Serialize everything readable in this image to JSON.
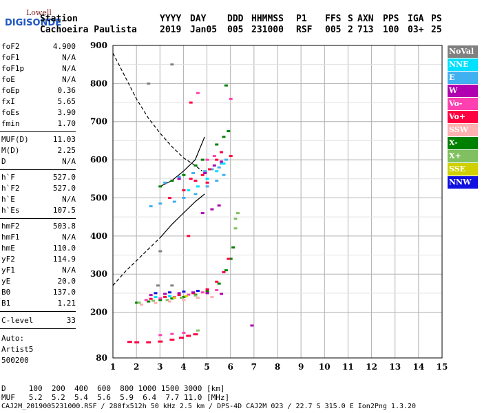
{
  "logo": {
    "line1": "Lowell",
    "line2": "DIGISONDE"
  },
  "header": {
    "labels": [
      "Station",
      "YYYY",
      "DAY",
      "DDD",
      "HHMMSS",
      "P1",
      "FFS",
      "S",
      "AXN",
      "PPS",
      "IGA",
      "PS"
    ],
    "values": [
      "Cachoeira Paulista",
      "2019",
      "Jan05",
      "005",
      "231000",
      "RSF",
      "005",
      "2",
      "713",
      "100",
      "03+",
      "25"
    ]
  },
  "params": [
    {
      "k": "foF2",
      "v": "4.900"
    },
    {
      "k": "foF1",
      "v": "N/A"
    },
    {
      "k": "foF1p",
      "v": "N/A"
    },
    {
      "k": "foE",
      "v": "N/A"
    },
    {
      "k": "foEp",
      "v": "0.36"
    },
    {
      "k": "fxI",
      "v": "5.65"
    },
    {
      "k": "foEs",
      "v": "3.90"
    },
    {
      "k": "fmin",
      "v": "1.70"
    },
    {
      "k": "MUF(D)",
      "v": "11.03"
    },
    {
      "k": "M(D)",
      "v": "2.25"
    },
    {
      "k": "D",
      "v": "N/A"
    },
    {
      "k": "h`F",
      "v": "527.0"
    },
    {
      "k": "h`F2",
      "v": "527.0"
    },
    {
      "k": "h`E",
      "v": "N/A"
    },
    {
      "k": "h`Es",
      "v": "107.5"
    },
    {
      "k": "hmF2",
      "v": "503.8"
    },
    {
      "k": "hmF1",
      "v": "N/A"
    },
    {
      "k": "hmE",
      "v": "110.0"
    },
    {
      "k": "yF2",
      "v": "114.9"
    },
    {
      "k": "yF1",
      "v": "N/A"
    },
    {
      "k": "yE",
      "v": "20.0"
    },
    {
      "k": "B0",
      "v": "137.0"
    },
    {
      "k": "B1",
      "v": "1.21"
    },
    {
      "k": "C-level",
      "v": "33"
    }
  ],
  "auto": {
    "line1": "Auto:",
    "line2": "Artist5",
    "line3": "500200"
  },
  "legend": [
    {
      "label": "NoVal",
      "color": "#808080"
    },
    {
      "label": "NNE",
      "color": "#00e0ff"
    },
    {
      "label": "E",
      "color": "#40b0f0"
    },
    {
      "label": "W",
      "color": "#b000b0"
    },
    {
      "label": "Vo-",
      "color": "#ff40b0"
    },
    {
      "label": "Vo+",
      "color": "#ff0040"
    },
    {
      "label": "SSW",
      "color": "#ffb0b0"
    },
    {
      "label": "X-",
      "color": "#008000"
    },
    {
      "label": "X+",
      "color": "#80c060"
    },
    {
      "label": "SSE",
      "color": "#d0d000"
    },
    {
      "label": "NNW",
      "color": "#1010e0"
    }
  ],
  "footer": {
    "d_row": "D     100  200  400  600  800 1000 1500 3000 [km]",
    "muf_row": "MUF   5.2  5.2  5.4  5.6  5.9  6.4  7.7 11.0 [MHz]",
    "file_row": "CAJ2M_2019005231000.RSF / 280fx512h 50 kHz 2.5 km / DPS-4D CAJ2M 023 / 22.7 S 315.0 E Ion2Png 1.3.20"
  },
  "chart_data": {
    "type": "scatter",
    "xlim": [
      1,
      15
    ],
    "ylim": [
      80,
      900
    ],
    "x_ticks": [
      1,
      2,
      3,
      4,
      5,
      6,
      7,
      8,
      9,
      10,
      11,
      12,
      13,
      14,
      15
    ],
    "y_ticks": [
      80,
      200,
      300,
      400,
      500,
      600,
      700,
      800,
      900
    ],
    "grid": true,
    "dashed_curve": [
      [
        1.0,
        880
      ],
      [
        1.5,
        820
      ],
      [
        2.0,
        760
      ],
      [
        2.5,
        710
      ],
      [
        3.0,
        670
      ],
      [
        3.5,
        635
      ],
      [
        4.0,
        605
      ],
      [
        4.5,
        585
      ],
      [
        4.8,
        570
      ]
    ],
    "dashed_curve_lower": [
      [
        1.0,
        270
      ],
      [
        1.5,
        305
      ],
      [
        2.0,
        335
      ],
      [
        2.5,
        365
      ],
      [
        3.0,
        395
      ]
    ],
    "solid_curve_lower": [
      [
        3.0,
        395
      ],
      [
        3.5,
        430
      ],
      [
        4.0,
        460
      ],
      [
        4.5,
        490
      ],
      [
        4.9,
        510
      ]
    ],
    "solid_curve_upper": [
      [
        3.0,
        530
      ],
      [
        3.5,
        545
      ],
      [
        4.0,
        570
      ],
      [
        4.5,
        600
      ],
      [
        4.7,
        630
      ],
      [
        4.9,
        660
      ]
    ],
    "series": [
      {
        "name": "E",
        "color": "#40b0f0",
        "points": [
          [
            3.2,
            540
          ],
          [
            3.8,
            555
          ],
          [
            4.4,
            565
          ],
          [
            4.9,
            570
          ],
          [
            5.2,
            575
          ],
          [
            5.5,
            580
          ],
          [
            5.6,
            590
          ],
          [
            5.8,
            600
          ],
          [
            2.6,
            478
          ],
          [
            3.0,
            485
          ],
          [
            3.6,
            490
          ],
          [
            4.0,
            500
          ],
          [
            4.5,
            510
          ],
          [
            5.0,
            530
          ],
          [
            5.4,
            545
          ],
          [
            5.7,
            560
          ]
        ]
      },
      {
        "name": "X-",
        "color": "#008000",
        "points": [
          [
            3.0,
            530
          ],
          [
            3.5,
            545
          ],
          [
            4.0,
            560
          ],
          [
            4.5,
            585
          ],
          [
            4.8,
            600
          ],
          [
            2.0,
            225
          ],
          [
            2.5,
            228
          ],
          [
            3.0,
            232
          ],
          [
            3.5,
            236
          ],
          [
            4.0,
            240
          ],
          [
            4.5,
            246
          ],
          [
            5.0,
            255
          ],
          [
            5.5,
            275
          ],
          [
            5.8,
            310
          ],
          [
            6.0,
            340
          ],
          [
            6.1,
            370
          ],
          [
            5.4,
            640
          ],
          [
            5.7,
            660
          ],
          [
            5.9,
            675
          ],
          [
            5.8,
            795
          ]
        ]
      },
      {
        "name": "Vo+",
        "color": "#ff0040",
        "points": [
          [
            4.5,
            545
          ],
          [
            4.8,
            560
          ],
          [
            5.1,
            575
          ],
          [
            5.4,
            600
          ],
          [
            5.6,
            620
          ],
          [
            5.0,
            540
          ],
          [
            4.3,
            550
          ],
          [
            4.0,
            520
          ],
          [
            3.4,
            500
          ],
          [
            4.2,
            400
          ],
          [
            2.6,
            235
          ],
          [
            3.2,
            240
          ],
          [
            3.8,
            245
          ],
          [
            4.4,
            250
          ],
          [
            5.0,
            260
          ],
          [
            5.4,
            280
          ],
          [
            5.7,
            305
          ],
          [
            5.9,
            340
          ],
          [
            4.3,
            750
          ],
          [
            6.0,
            610
          ]
        ]
      },
      {
        "name": "W",
        "color": "#b000b0",
        "points": [
          [
            2.6,
            245
          ],
          [
            3.2,
            248
          ],
          [
            3.8,
            250
          ],
          [
            4.4,
            252
          ],
          [
            5.0,
            250
          ],
          [
            5.6,
            248
          ],
          [
            4.8,
            460
          ],
          [
            5.2,
            470
          ],
          [
            5.5,
            480
          ],
          [
            4.9,
            565
          ],
          [
            5.3,
            585
          ],
          [
            5.6,
            595
          ],
          [
            3.8,
            550
          ],
          [
            6.9,
            165
          ]
        ]
      },
      {
        "name": "Vo-",
        "color": "#ff40b0",
        "points": [
          [
            2.4,
            232
          ],
          [
            3.0,
            236
          ],
          [
            3.6,
            240
          ],
          [
            4.2,
            246
          ],
          [
            4.8,
            252
          ],
          [
            5.4,
            258
          ],
          [
            4.6,
            775
          ],
          [
            6.0,
            760
          ],
          [
            3.0,
            140
          ],
          [
            3.5,
            143
          ],
          [
            4.0,
            146
          ],
          [
            5.0,
            600
          ],
          [
            5.3,
            610
          ]
        ]
      },
      {
        "name": "X+",
        "color": "#80c060",
        "points": [
          [
            2.1,
            225
          ],
          [
            2.7,
            230
          ],
          [
            3.3,
            232
          ],
          [
            3.9,
            238
          ],
          [
            4.5,
            244
          ],
          [
            6.2,
            420
          ],
          [
            6.2,
            445
          ],
          [
            6.3,
            460
          ],
          [
            4.6,
            152
          ]
        ]
      },
      {
        "name": "NNE",
        "color": "#00e0ff",
        "points": [
          [
            4.2,
            520
          ],
          [
            4.6,
            530
          ],
          [
            5.0,
            550
          ],
          [
            5.4,
            570
          ],
          [
            5.7,
            590
          ],
          [
            2.8,
            240
          ],
          [
            3.4,
            242
          ]
        ]
      },
      {
        "name": "SSW",
        "color": "#ffb0b0",
        "points": [
          [
            2.2,
            220
          ],
          [
            2.8,
            224
          ],
          [
            3.4,
            228
          ],
          [
            4.0,
            232
          ],
          [
            4.6,
            238
          ],
          [
            5.2,
            240
          ]
        ]
      },
      {
        "name": "NNW",
        "color": "#1010e0",
        "points": [
          [
            2.8,
            250
          ],
          [
            3.4,
            252
          ],
          [
            4.0,
            254
          ],
          [
            4.6,
            256
          ]
        ]
      },
      {
        "name": "NoVal",
        "color": "#808080",
        "points": [
          [
            2.5,
            800
          ],
          [
            3.5,
            850
          ],
          [
            3.0,
            360
          ],
          [
            2.9,
            270
          ],
          [
            3.5,
            270
          ]
        ]
      },
      {
        "name": "SSE",
        "color": "#d0d000",
        "points": [
          [
            3.6,
            238
          ],
          [
            4.1,
            242
          ]
        ]
      }
    ],
    "es_trace": [
      [
        1.7,
        122
      ],
      [
        2.0,
        121
      ],
      [
        2.5,
        121
      ],
      [
        3.0,
        123
      ],
      [
        3.5,
        128
      ],
      [
        3.9,
        133
      ],
      [
        4.2,
        138
      ],
      [
        4.5,
        142
      ]
    ]
  }
}
